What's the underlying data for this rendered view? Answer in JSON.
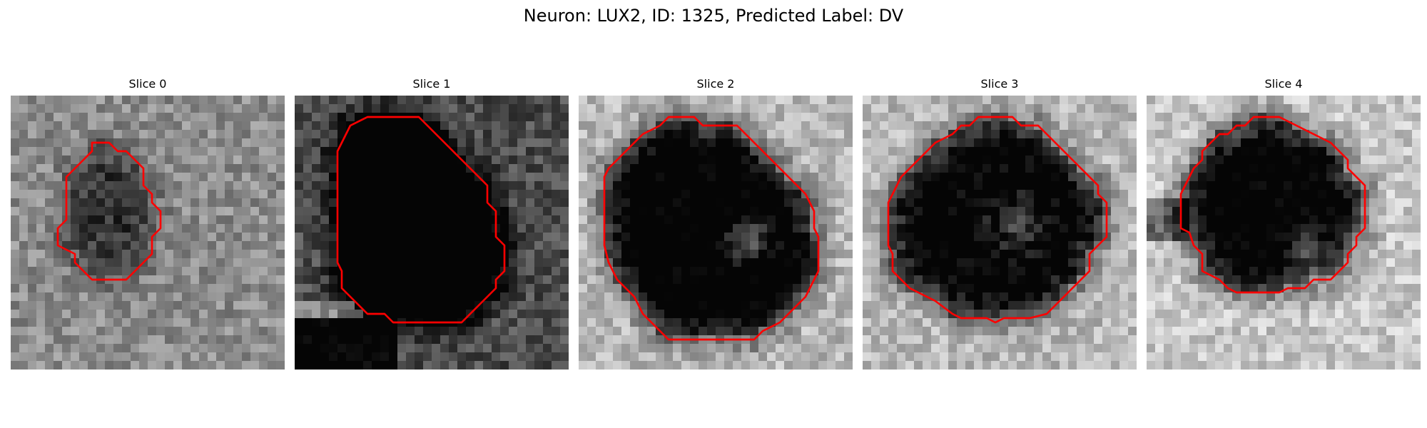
{
  "figure": {
    "title": "Neuron: LUX2, ID: 1325, Predicted Label: DV"
  },
  "colors": {
    "background": "#ffffff",
    "contour": "#ff0000"
  },
  "slices": [
    {
      "title": "Slice 0",
      "contrast": 0.35,
      "base": 0.55
    },
    {
      "title": "Slice 1",
      "contrast": 0.85,
      "base": 0.3
    },
    {
      "title": "Slice 2",
      "contrast": 0.8,
      "base": 0.72
    },
    {
      "title": "Slice 3",
      "contrast": 0.75,
      "base": 0.72
    },
    {
      "title": "Slice 4",
      "contrast": 0.85,
      "base": 0.78
    }
  ]
}
